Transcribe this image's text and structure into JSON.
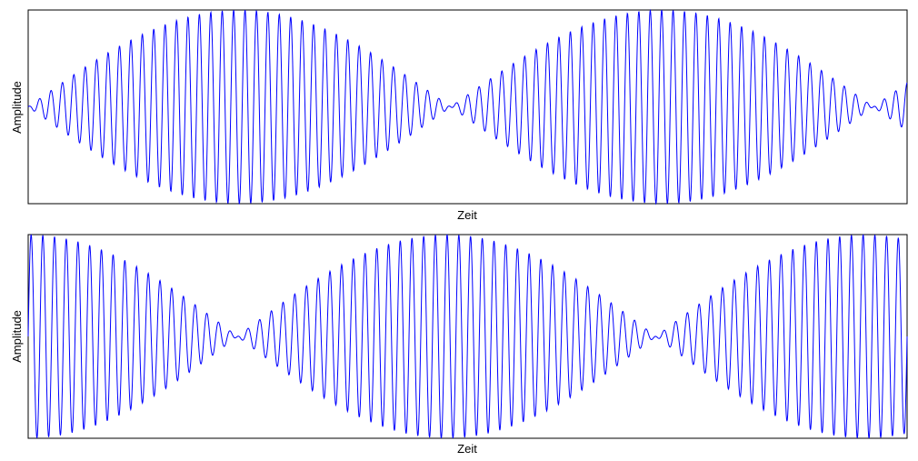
{
  "chart_data": [
    {
      "type": "line",
      "xlabel": "Zeit",
      "ylabel": "Amplitude",
      "xticks": [],
      "yticks": [],
      "grid": false,
      "xlim": [
        0,
        1
      ],
      "ylim": [
        -2,
        2
      ],
      "line_color": "#0000ff",
      "signal": {
        "form": "sin(2*pi*f1*t) - sin(2*pi*f2*t)",
        "f1": 78.04,
        "f2": 75.96
      },
      "envelope_zeros_t": [
        0.0,
        0.48,
        0.96
      ]
    },
    {
      "type": "line",
      "xlabel": "Zeit",
      "ylabel": "Amplitude",
      "xticks": [],
      "yticks": [],
      "grid": false,
      "xlim": [
        0,
        1
      ],
      "ylim": [
        -2,
        2
      ],
      "line_color": "#0000ff",
      "signal": {
        "form": "sin(2*pi*f1*t) + sin(2*pi*f2*t)",
        "f1": 76.05,
        "f2": 73.95
      },
      "envelope_zeros_t": [
        0.24,
        0.72
      ]
    }
  ]
}
